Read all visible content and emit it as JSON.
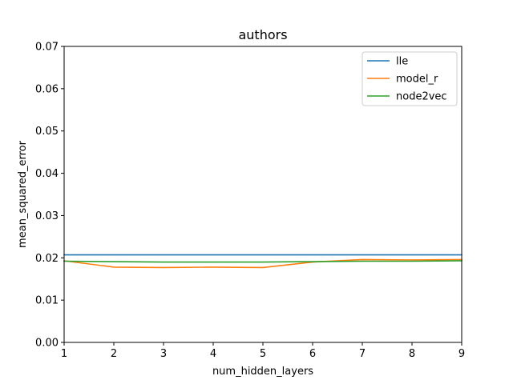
{
  "chart_data": {
    "type": "line",
    "title": "authors",
    "xlabel": "num_hidden_layers",
    "ylabel": "mean_squared_error",
    "xlim": [
      1,
      9
    ],
    "ylim": [
      0,
      0.07
    ],
    "x": [
      1,
      2,
      3,
      4,
      5,
      6,
      7,
      8,
      9
    ],
    "xticks": [
      "1",
      "2",
      "3",
      "4",
      "5",
      "6",
      "7",
      "8",
      "9"
    ],
    "yticks": [
      "0.00",
      "0.01",
      "0.02",
      "0.03",
      "0.04",
      "0.05",
      "0.06",
      "0.07"
    ],
    "ytick_values": [
      0,
      0.01,
      0.02,
      0.03,
      0.04,
      0.05,
      0.06,
      0.07
    ],
    "grid": false,
    "legend_position": "top-right",
    "series": [
      {
        "name": "lle",
        "color": "#1f77b4",
        "values": [
          0.0207,
          0.0207,
          0.0207,
          0.0207,
          0.0207,
          0.0207,
          0.0207,
          0.0207,
          0.0207
        ]
      },
      {
        "name": "model_r",
        "color": "#ff7f0e",
        "values": [
          0.0193,
          0.0178,
          0.0177,
          0.0178,
          0.0177,
          0.019,
          0.0196,
          0.0195,
          0.0196
        ]
      },
      {
        "name": "node2vec",
        "color": "#2ca02c",
        "values": [
          0.0192,
          0.0191,
          0.019,
          0.019,
          0.019,
          0.0191,
          0.0192,
          0.0192,
          0.0193
        ]
      }
    ]
  }
}
